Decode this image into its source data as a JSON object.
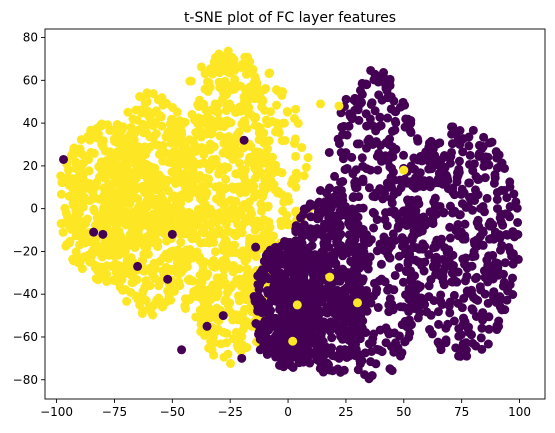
{
  "chart_data": {
    "type": "scatter",
    "title": "t-SNE plot of FC layer features",
    "xlabel": "",
    "ylabel": "",
    "xlim": [
      -105,
      111
    ],
    "ylim": [
      -89,
      84
    ],
    "x_ticks": [
      -100,
      -75,
      -50,
      -25,
      0,
      25,
      50,
      75,
      100
    ],
    "y_ticks": [
      -80,
      -60,
      -40,
      -20,
      0,
      20,
      40,
      60,
      80
    ],
    "grid": false,
    "legend": "none",
    "series": [
      {
        "color": "#fde725",
        "clusters": [
          {
            "x": [
              -55,
              10
            ],
            "y": [
              -65,
              75
            ]
          },
          {
            "x": [
              -100,
              -55
            ],
            "y": [
              -35,
              40
            ]
          },
          {
            "x": [
              -80,
              -40
            ],
            "y": [
              -50,
              55
            ]
          },
          {
            "x": [
              -45,
              -5
            ],
            "y": [
              -75,
              75
            ]
          }
        ],
        "outliers": [
          {
            "x": 22,
            "y": 48
          },
          {
            "x": 14,
            "y": 49
          },
          {
            "x": 2,
            "y": -62
          },
          {
            "x": 50,
            "y": 18
          },
          {
            "x": 4,
            "y": -45
          },
          {
            "x": 30,
            "y": -44
          },
          {
            "x": 18,
            "y": -32
          }
        ]
      },
      {
        "color": "#440154",
        "clusters": [
          {
            "x": [
              15,
              60
            ],
            "y": [
              -80,
              65
            ]
          },
          {
            "x": [
              0,
              35
            ],
            "y": [
              -80,
              10
            ]
          },
          {
            "x": [
              50,
              100
            ],
            "y": [
              -70,
              40
            ]
          },
          {
            "x": [
              -15,
              15
            ],
            "y": [
              -75,
              -15
            ]
          }
        ],
        "outliers": [
          {
            "x": -19,
            "y": 32
          },
          {
            "x": -50,
            "y": -12
          },
          {
            "x": -80,
            "y": -12
          },
          {
            "x": -84,
            "y": -11
          },
          {
            "x": -52,
            "y": -33
          },
          {
            "x": -65,
            "y": -27
          },
          {
            "x": -97,
            "y": 23
          },
          {
            "x": -14,
            "y": -18
          },
          {
            "x": -35,
            "y": -55
          },
          {
            "x": -20,
            "y": -70
          },
          {
            "x": -12,
            "y": -66
          },
          {
            "x": -28,
            "y": -50
          },
          {
            "x": -46,
            "y": -66
          }
        ]
      }
    ]
  }
}
